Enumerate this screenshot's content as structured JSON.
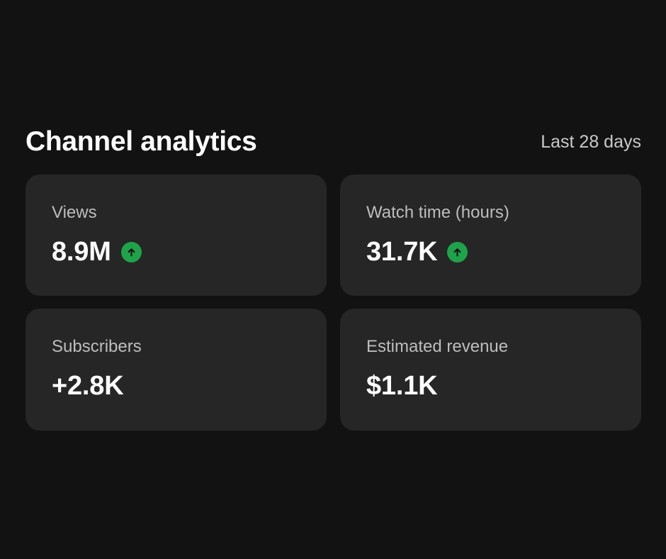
{
  "header": {
    "title": "Channel analytics",
    "range_label": "Last 28 days"
  },
  "colors": {
    "background": "#121212",
    "card": "#262626",
    "trend_up": "#1fa34a"
  },
  "cards": [
    {
      "label": "Views",
      "value": "8.9M",
      "trend": "up",
      "trend_icon": "arrow-up-circle-icon"
    },
    {
      "label": "Watch time (hours)",
      "value": "31.7K",
      "trend": "up",
      "trend_icon": "arrow-up-circle-icon"
    },
    {
      "label": "Subscribers",
      "value": "+2.8K",
      "trend": null
    },
    {
      "label": "Estimated revenue",
      "value": "$1.1K",
      "trend": null
    }
  ]
}
